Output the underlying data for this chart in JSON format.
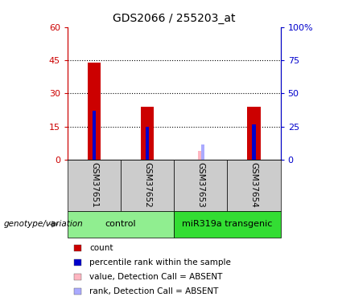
{
  "title": "GDS2066 / 255203_at",
  "samples": [
    "GSM37651",
    "GSM37652",
    "GSM37653",
    "GSM37654"
  ],
  "red_values": [
    44,
    24,
    0,
    24
  ],
  "blue_values": [
    22,
    15,
    0,
    16
  ],
  "pink_values": [
    0,
    0,
    4,
    0
  ],
  "lightblue_values": [
    0,
    0,
    7,
    0
  ],
  "groups": [
    {
      "label": "control",
      "samples": [
        0,
        1
      ],
      "color": "#90EE90"
    },
    {
      "label": "miR319a transgenic",
      "samples": [
        2,
        3
      ],
      "color": "#33DD33"
    }
  ],
  "ylim_left": [
    0,
    60
  ],
  "ylim_right": [
    0,
    100
  ],
  "yticks_left": [
    0,
    15,
    30,
    45,
    60
  ],
  "yticks_right": [
    0,
    25,
    50,
    75,
    100
  ],
  "ytick_labels_left": [
    "0",
    "15",
    "30",
    "45",
    "60"
  ],
  "ytick_labels_right": [
    "0",
    "25",
    "50",
    "75",
    "100%"
  ],
  "bar_width": 0.25,
  "red_color": "#CC0000",
  "blue_color": "#0000CC",
  "pink_color": "#FFB6C1",
  "lightblue_color": "#AAAAFF",
  "bg_color": "#CCCCCC",
  "plot_bg": "#FFFFFF",
  "legend_items": [
    {
      "label": "count",
      "color": "#CC0000"
    },
    {
      "label": "percentile rank within the sample",
      "color": "#0000CC"
    },
    {
      "label": "value, Detection Call = ABSENT",
      "color": "#FFB6C1"
    },
    {
      "label": "rank, Detection Call = ABSENT",
      "color": "#AAAAFF"
    }
  ],
  "group_label": "genotype/variation",
  "left_axis_color": "#CC0000",
  "right_axis_color": "#0000CC",
  "gridline_yticks": [
    15,
    30,
    45
  ]
}
